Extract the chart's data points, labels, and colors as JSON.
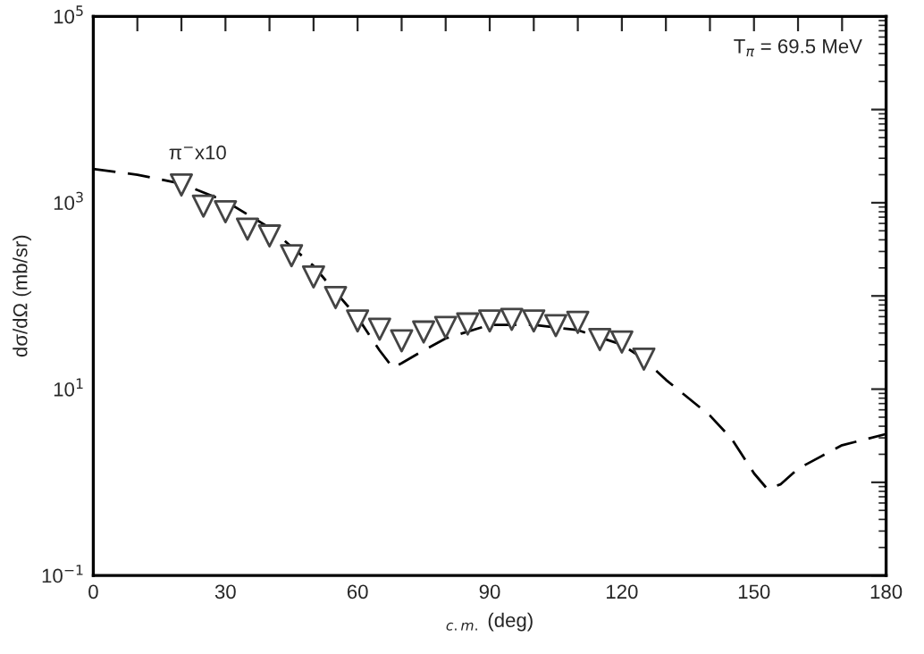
{
  "chart_data": {
    "type": "scatter",
    "xlabel": "$_{c.m.}$ (deg)",
    "ylabel": "dσ/dΩ (mb/sr)",
    "annotations": [
      "π$^{−}$x10",
      "T$_{π}$ = 69.5 MeV"
    ],
    "log": "y",
    "marker": "triangle",
    "grid": false,
    "legend": false,
    "xlim": [
      0,
      180
    ],
    "ylim": [
      0.1,
      100000
    ],
    "xticks": [
      0,
      {
        "value": 10,
        "label": null
      },
      {
        "value": 20,
        "label": null
      },
      30,
      {
        "value": 40,
        "label": null
      },
      {
        "value": 50,
        "label": null
      },
      60,
      {
        "value": 70,
        "label": null
      },
      {
        "value": 80,
        "label": null
      },
      90,
      {
        "value": 100,
        "label": null
      },
      {
        "value": 110,
        "label": null
      },
      120,
      {
        "value": 130,
        "label": null
      },
      {
        "value": 140,
        "label": null
      },
      150,
      {
        "value": 160,
        "label": null
      },
      {
        "value": 170,
        "label": null
      },
      180
    ],
    "yticks": [
      {
        "value": 0.1,
        "label": "10$^{−1}$"
      },
      {
        "value": 1,
        "label": null
      },
      {
        "value": 10,
        "label": "10$^{1}$"
      },
      {
        "value": 100,
        "label": null
      },
      {
        "value": 1000,
        "label": "10$^{3}$"
      },
      {
        "value": 10000,
        "label": null
      },
      {
        "value": 100000,
        "label": "10$^{5}$"
      }
    ],
    "series": [
      {
        "color": "#444444",
        "x": [
          20,
          25,
          30,
          35,
          40,
          45,
          50,
          55,
          60,
          65,
          70,
          75,
          80,
          85,
          90,
          95,
          100,
          105,
          110,
          115,
          120,
          125
        ],
        "values": [
          1550,
          920,
          800,
          520,
          440,
          270,
          160,
          96,
          54,
          44,
          33,
          41,
          46,
          50,
          54,
          56,
          54,
          48,
          52,
          34,
          32,
          21
        ]
      },
      {
        "type": "line",
        "line_style": "dashed",
        "marker": "none",
        "color": "#000000",
        "x": [
          0,
          10,
          20,
          30,
          40,
          50,
          55,
          60,
          65,
          68,
          70,
          75,
          80,
          90,
          100,
          110,
          120,
          125,
          130,
          140,
          145,
          150,
          153,
          156,
          160,
          170,
          180
        ],
        "values": [
          2300,
          2000,
          1600,
          1040,
          540,
          210,
          110,
          59,
          26,
          17,
          19,
          26,
          35,
          49,
          49,
          43,
          30,
          21,
          12.6,
          5.2,
          2.9,
          1.25,
          0.85,
          0.95,
          1.4,
          2.5,
          3.3
        ]
      }
    ]
  }
}
